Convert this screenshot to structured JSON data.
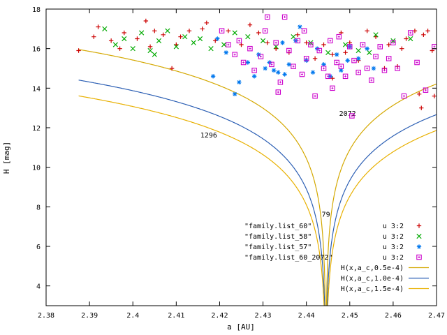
{
  "chart_data": {
    "type": "scatter",
    "xlabel": "a [AU]",
    "ylabel": "H [mag]",
    "xlim": [
      2.38,
      2.47
    ],
    "ylim": [
      3,
      18
    ],
    "x_ticks": [
      "2.38",
      "2.39",
      "2.4",
      "2.41",
      "2.42",
      "2.43",
      "2.44",
      "2.45",
      "2.46",
      "2.47"
    ],
    "y_ticks": [
      "4",
      "6",
      "8",
      "10",
      "12",
      "14",
      "16",
      "18"
    ],
    "x_tick_values": [
      2.38,
      2.39,
      2.4,
      2.41,
      2.42,
      2.43,
      2.44,
      2.45,
      2.46,
      2.47
    ],
    "y_tick_values": [
      4,
      6,
      8,
      10,
      12,
      14,
      16,
      18
    ],
    "grid": false,
    "legend_placement": "bottom-right",
    "legend_titles": [
      "\"family.list_60\"",
      "\"family.list_58\"",
      "\"family.list_57\"",
      "\"family.list_60_2072\"",
      "H(x,a_c,0.5e-4)",
      "H(x,a_c,1.0e-4)",
      "H(x,a_c,1.5e-4)"
    ],
    "legend_using": [
      "u 3:2",
      "u 3:2",
      "u 3:2",
      "u 3:2"
    ],
    "series": [
      {
        "name": "\"family.list_60\" u 3:2",
        "marker": "plus",
        "color": "#cc0000",
        "points": [
          [
            2.3875,
            15.9
          ],
          [
            2.392,
            17.1
          ],
          [
            2.395,
            16.4
          ],
          [
            2.398,
            16.8
          ],
          [
            2.401,
            16.5
          ],
          [
            2.403,
            17.4
          ],
          [
            2.405,
            16.9
          ],
          [
            2.407,
            16.7
          ],
          [
            2.409,
            15.0
          ],
          [
            2.411,
            16.6
          ],
          [
            2.413,
            16.9
          ],
          [
            2.416,
            17.0
          ],
          [
            2.419,
            16.4
          ],
          [
            2.422,
            16.9
          ],
          [
            2.425,
            16.2
          ],
          [
            2.427,
            17.2
          ],
          [
            2.429,
            16.8
          ],
          [
            2.431,
            16.3
          ],
          [
            2.433,
            16.0
          ],
          [
            2.436,
            15.8
          ],
          [
            2.438,
            16.7
          ],
          [
            2.44,
            16.3
          ],
          [
            2.442,
            15.5
          ],
          [
            2.444,
            16.2
          ],
          [
            2.446,
            15.7
          ],
          [
            2.448,
            16.8
          ],
          [
            2.45,
            16.3
          ],
          [
            2.452,
            15.4
          ],
          [
            2.454,
            16.9
          ],
          [
            2.456,
            16.6
          ],
          [
            2.459,
            16.2
          ],
          [
            2.461,
            15.1
          ],
          [
            2.463,
            16.5
          ],
          [
            2.465,
            16.9
          ],
          [
            2.467,
            16.7
          ],
          [
            2.469,
            15.9
          ],
          [
            2.466,
            13.7
          ],
          [
            2.4665,
            13.0
          ],
          [
            2.4695,
            13.6
          ],
          [
            2.417,
            17.3
          ],
          [
            2.41,
            16.2
          ],
          [
            2.404,
            16.1
          ],
          [
            2.397,
            16.0
          ],
          [
            2.391,
            16.6
          ],
          [
            2.446,
            14.5
          ],
          [
            2.449,
            15.8
          ],
          [
            2.458,
            15.0
          ],
          [
            2.462,
            16.0
          ],
          [
            2.468,
            16.9
          ]
        ]
      },
      {
        "name": "\"family.list_58\" u 3:2",
        "marker": "cross",
        "color": "#00aa00",
        "points": [
          [
            2.3935,
            17.0
          ],
          [
            2.396,
            16.2
          ],
          [
            2.398,
            16.5
          ],
          [
            2.4,
            16.0
          ],
          [
            2.402,
            16.8
          ],
          [
            2.404,
            15.9
          ],
          [
            2.405,
            15.7
          ],
          [
            2.406,
            16.4
          ],
          [
            2.408,
            16.9
          ],
          [
            2.41,
            16.1
          ],
          [
            2.412,
            16.6
          ],
          [
            2.414,
            16.3
          ],
          [
            2.4155,
            16.5
          ],
          [
            2.418,
            16.0
          ],
          [
            2.421,
            16.2
          ],
          [
            2.4235,
            16.8
          ],
          [
            2.4265,
            16.6
          ],
          [
            2.43,
            16.4
          ],
          [
            2.433,
            16.1
          ],
          [
            2.437,
            16.6
          ],
          [
            2.441,
            16.3
          ],
          [
            2.445,
            15.8
          ],
          [
            2.449,
            16.2
          ],
          [
            2.452,
            15.9
          ],
          [
            2.4545,
            15.8
          ],
          [
            2.456,
            16.7
          ],
          [
            2.46,
            16.4
          ],
          [
            2.464,
            16.5
          ]
        ]
      },
      {
        "name": "\"family.list_57\" u 3:2",
        "marker": "star",
        "color": "#0077ee",
        "points": [
          [
            2.4185,
            14.6
          ],
          [
            2.4195,
            16.5
          ],
          [
            2.4215,
            15.8
          ],
          [
            2.4235,
            13.7
          ],
          [
            2.4245,
            14.3
          ],
          [
            2.4265,
            15.3
          ],
          [
            2.428,
            14.6
          ],
          [
            2.429,
            15.7
          ],
          [
            2.4305,
            15.0
          ],
          [
            2.4315,
            15.3
          ],
          [
            2.4325,
            14.9
          ],
          [
            2.4335,
            14.8
          ],
          [
            2.4345,
            16.3
          ],
          [
            2.435,
            14.7
          ],
          [
            2.436,
            15.2
          ],
          [
            2.4375,
            16.4
          ],
          [
            2.4385,
            17.1
          ],
          [
            2.44,
            15.4
          ],
          [
            2.4415,
            14.8
          ],
          [
            2.4425,
            16.0
          ],
          [
            2.444,
            15.2
          ],
          [
            2.4455,
            14.6
          ],
          [
            2.447,
            15.7
          ],
          [
            2.448,
            14.9
          ],
          [
            2.4495,
            15.4
          ],
          [
            2.45,
            16.1
          ],
          [
            2.452,
            15.5
          ],
          [
            2.454,
            16.0
          ],
          [
            2.4555,
            15.0
          ]
        ]
      },
      {
        "name": "\"family.list_60_2072\" u 3:2",
        "marker": "boxdot",
        "color": "#cc00cc",
        "points": [
          [
            2.4205,
            16.9
          ],
          [
            2.422,
            16.2
          ],
          [
            2.4235,
            15.7
          ],
          [
            2.4245,
            16.4
          ],
          [
            2.4255,
            15.3
          ],
          [
            2.427,
            16.0
          ],
          [
            2.428,
            14.9
          ],
          [
            2.4295,
            15.6
          ],
          [
            2.4305,
            16.9
          ],
          [
            2.431,
            17.6
          ],
          [
            2.432,
            15.2
          ],
          [
            2.433,
            16.3
          ],
          [
            2.4335,
            13.8
          ],
          [
            2.434,
            14.3
          ],
          [
            2.435,
            17.6
          ],
          [
            2.436,
            15.9
          ],
          [
            2.437,
            15.1
          ],
          [
            2.438,
            16.4
          ],
          [
            2.439,
            14.7
          ],
          [
            2.4395,
            16.9
          ],
          [
            2.44,
            15.5
          ],
          [
            2.441,
            16.2
          ],
          [
            2.442,
            13.6
          ],
          [
            2.443,
            15.9
          ],
          [
            2.444,
            15.0
          ],
          [
            2.445,
            14.6
          ],
          [
            2.4455,
            16.4
          ],
          [
            2.446,
            14.0
          ],
          [
            2.447,
            15.3
          ],
          [
            2.4475,
            16.6
          ],
          [
            2.448,
            15.1
          ],
          [
            2.449,
            14.6
          ],
          [
            2.45,
            16.1
          ],
          [
            2.4505,
            12.6
          ],
          [
            2.451,
            15.4
          ],
          [
            2.452,
            14.8
          ],
          [
            2.453,
            16.2
          ],
          [
            2.454,
            15.0
          ],
          [
            2.455,
            14.4
          ],
          [
            2.456,
            15.6
          ],
          [
            2.457,
            16.1
          ],
          [
            2.458,
            14.9
          ],
          [
            2.459,
            15.5
          ],
          [
            2.46,
            16.3
          ],
          [
            2.461,
            15.0
          ],
          [
            2.4625,
            13.6
          ],
          [
            2.464,
            16.8
          ],
          [
            2.4655,
            15.3
          ],
          [
            2.4675,
            13.9
          ],
          [
            2.4695,
            16.1
          ]
        ]
      },
      {
        "name": "H(x,a_c,0.5e-4)",
        "marker": "line",
        "color": "#d4a800",
        "param": 5e-05
      },
      {
        "name": "H(x,a_c,1.0e-4)",
        "marker": "line",
        "color": "#2c5fb4",
        "param": 0.0001
      },
      {
        "name": "H(x,a_c,1.5e-4)",
        "marker": "line",
        "color": "#e8b000",
        "param": 0.00015
      }
    ],
    "curve_a_c": 2.4445,
    "annotations": [
      "1296",
      "2072",
      "79"
    ],
    "annotation_points": [
      [
        2.4175,
        11.5
      ],
      [
        2.4495,
        12.6
      ],
      [
        2.4445,
        7.5
      ]
    ]
  }
}
